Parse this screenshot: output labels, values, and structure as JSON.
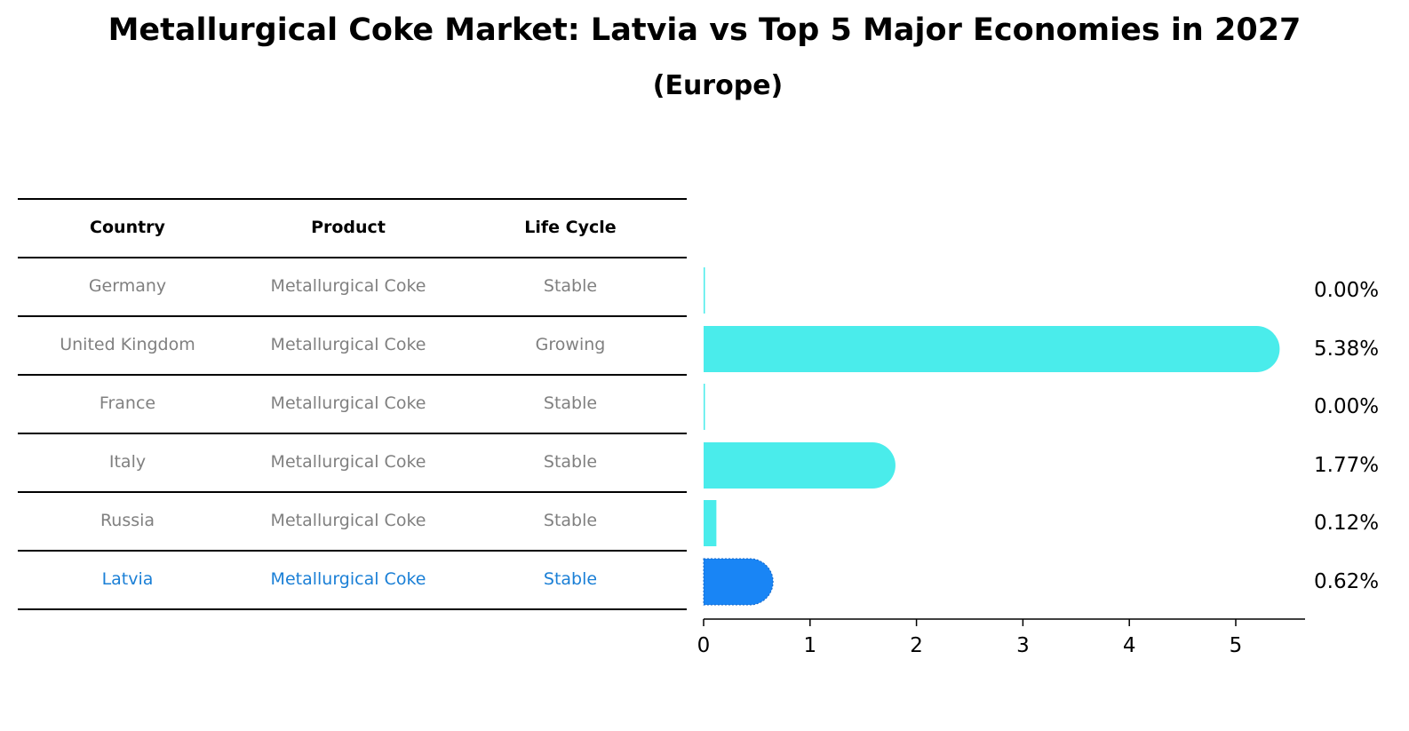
{
  "header": {
    "title": "Metallurgical Coke Market: Latvia vs Top 5 Major Economies in 2027",
    "subtitle": "(Europe)"
  },
  "table": {
    "columns": [
      "Country",
      "Product",
      "Life Cycle"
    ],
    "rows": [
      {
        "country": "Germany",
        "product": "Metallurgical Coke",
        "life_cycle": "Stable"
      },
      {
        "country": "United Kingdom",
        "product": "Metallurgical Coke",
        "life_cycle": "Growing"
      },
      {
        "country": "France",
        "product": "Metallurgical Coke",
        "life_cycle": "Stable"
      },
      {
        "country": "Italy",
        "product": "Metallurgical Coke",
        "life_cycle": "Stable"
      },
      {
        "country": "Russia",
        "product": "Metallurgical Coke",
        "life_cycle": "Stable"
      },
      {
        "country": "Latvia",
        "product": "Metallurgical Coke",
        "life_cycle": "Stable"
      }
    ],
    "highlight_row": 5,
    "colors": {
      "header": "#000000",
      "text": "#808080",
      "highlight": "#1a7fd6",
      "rule": "#000000"
    }
  },
  "chart_data": {
    "type": "bar",
    "orientation": "horizontal",
    "title": "Metallurgical Coke Market: Latvia vs Top 5 Major Economies in 2027",
    "subtitle": "(Europe)",
    "categories": [
      "Germany",
      "United Kingdom",
      "France",
      "Italy",
      "Russia",
      "Latvia"
    ],
    "values": [
      0.0,
      5.38,
      0.0,
      1.77,
      0.12,
      0.62
    ],
    "value_labels": [
      "0.00%",
      "5.38%",
      "0.00%",
      "1.77%",
      "0.12%",
      "0.62%"
    ],
    "xticks": [
      "0",
      "1",
      "2",
      "3",
      "4",
      "5"
    ],
    "xlim": [
      0,
      5.65
    ],
    "grid": false,
    "highlight_category": "Latvia",
    "colors": {
      "bar": "#4aeceb",
      "highlight": "#1985f5",
      "axis": "#000000"
    }
  }
}
